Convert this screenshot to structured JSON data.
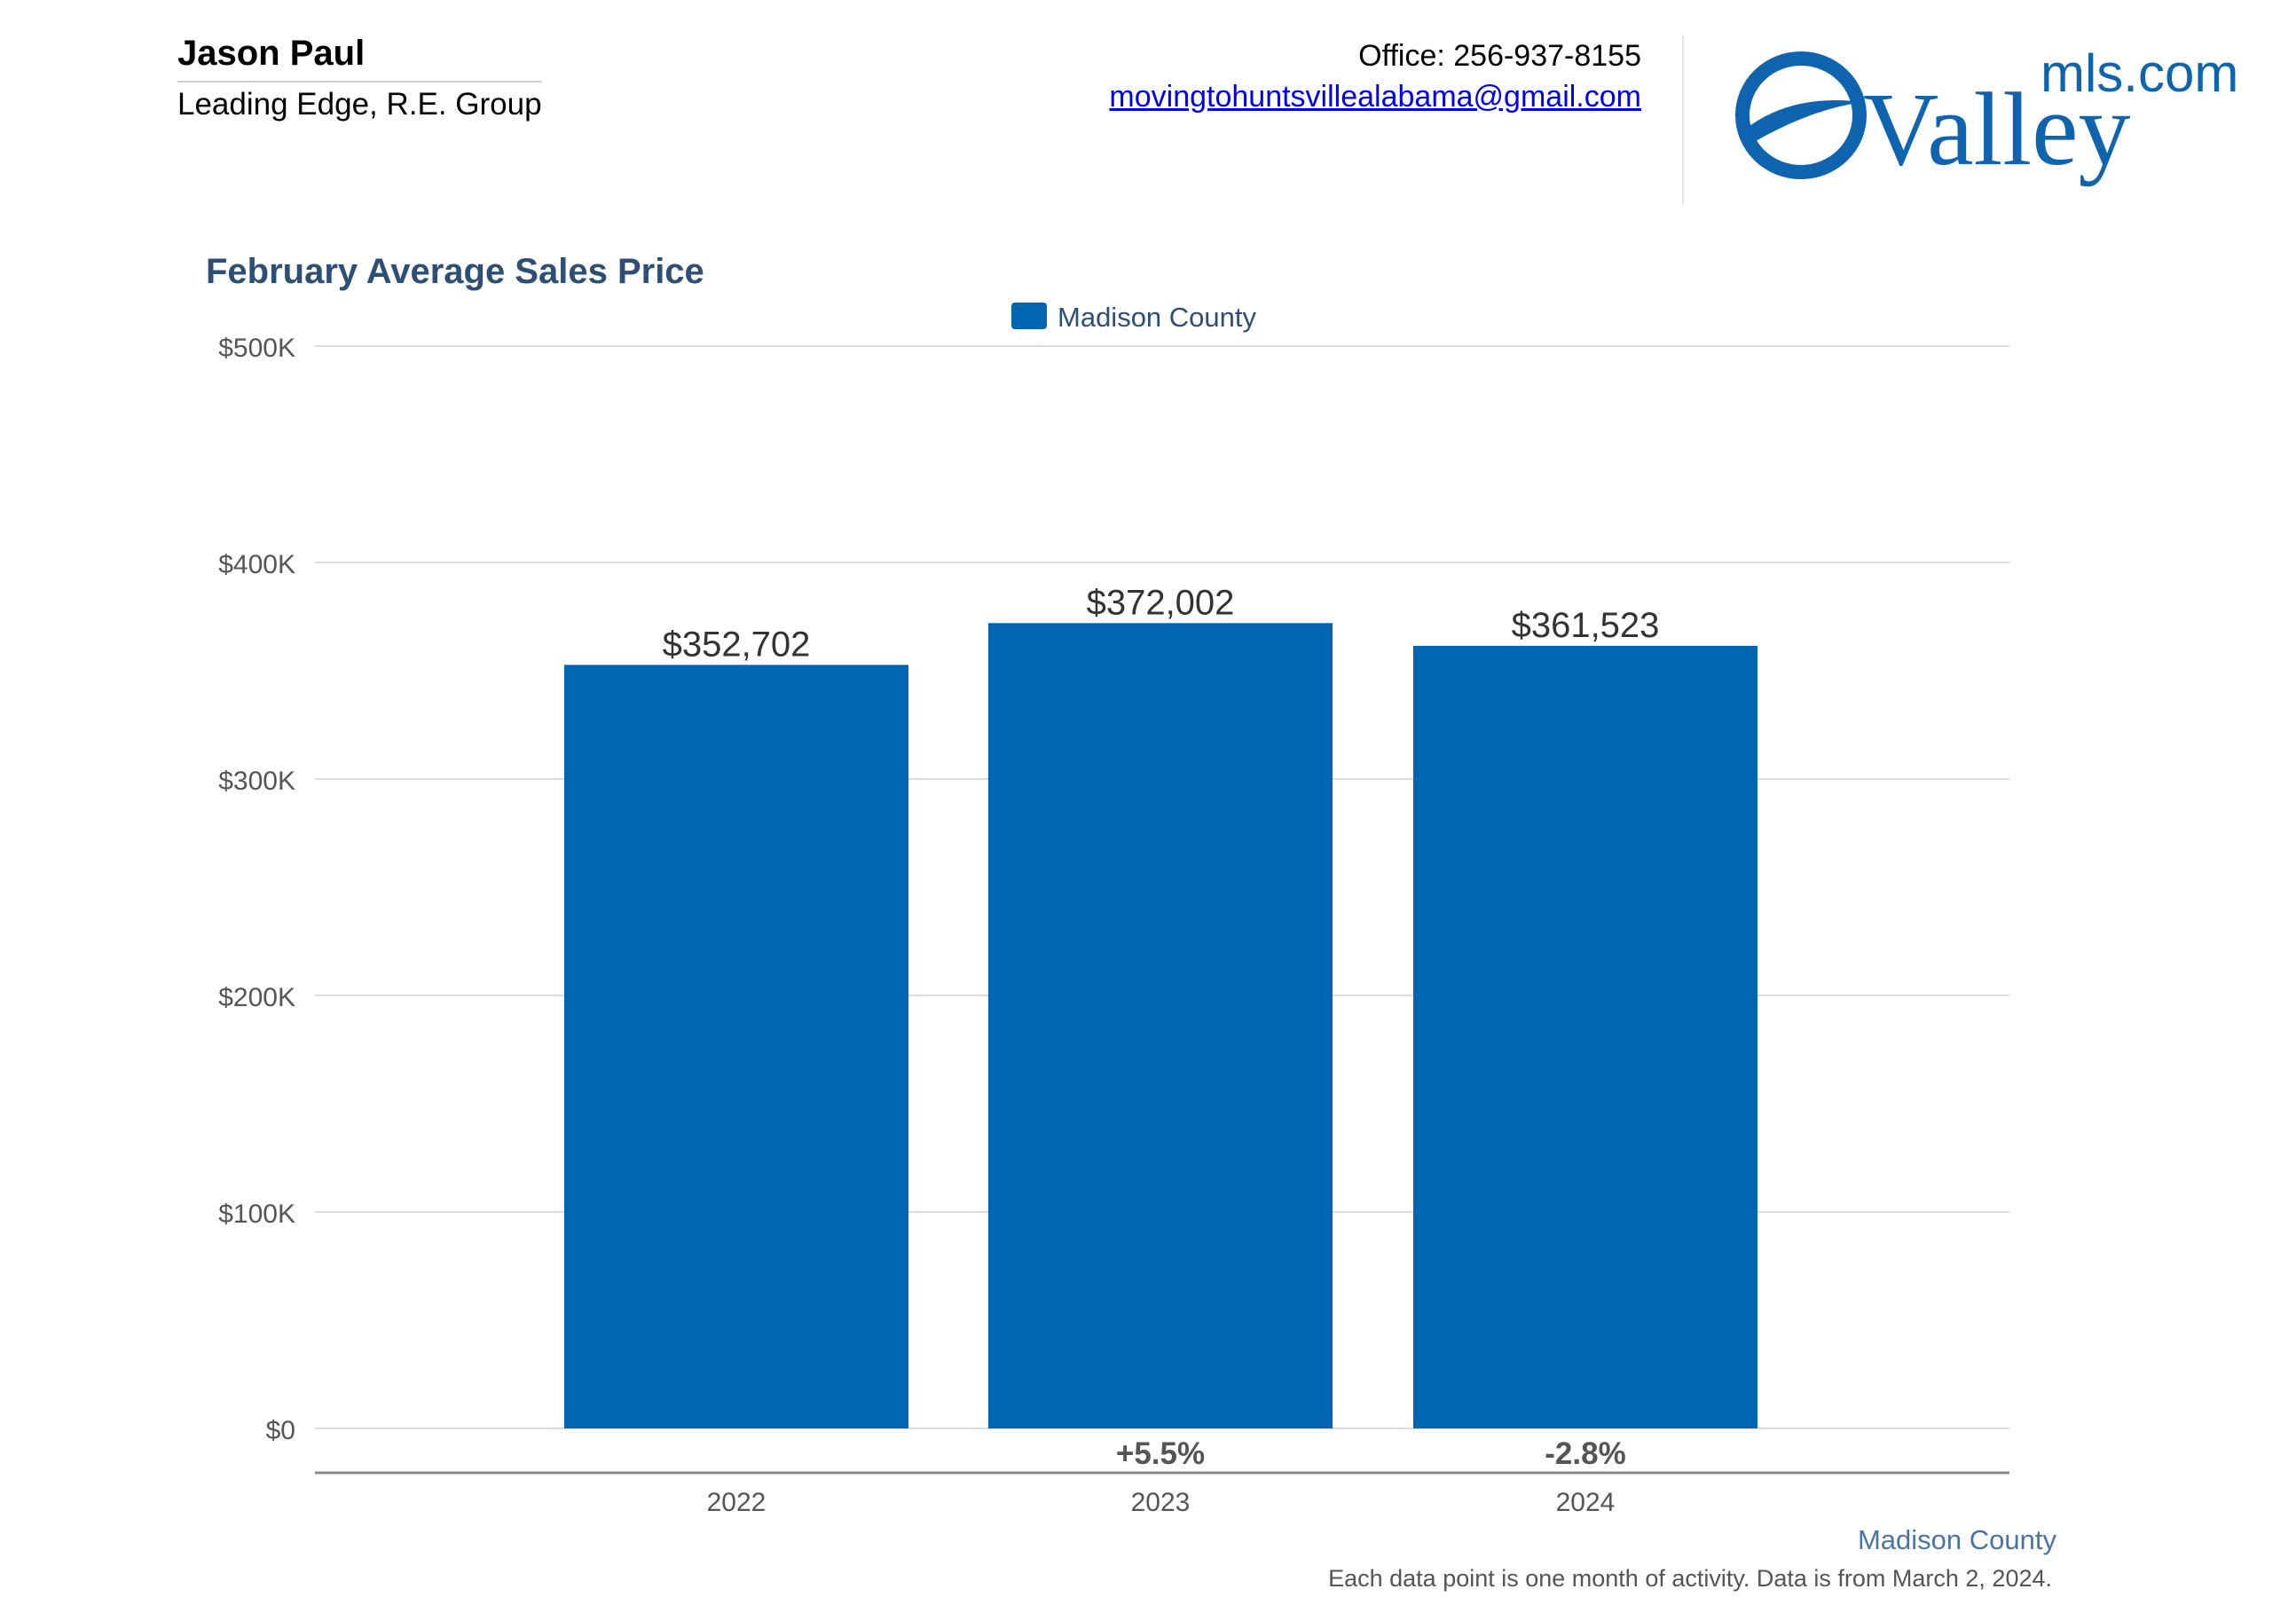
{
  "header": {
    "agent_name": "Jason Paul",
    "company": "Leading Edge, R.E. Group",
    "office": "Office: 256-937-8155",
    "email": "movingtohuntsvillealabama@gmail.com",
    "logo_prefix": "Valley",
    "logo_suffix": "mls.com"
  },
  "colors": {
    "bar": "#0066b2",
    "title": "#2d4f75",
    "logo": "#0f64b0"
  },
  "chart_data": {
    "type": "bar",
    "title": "February Average Sales Price",
    "categories": [
      "2022",
      "2023",
      "2024"
    ],
    "series": [
      {
        "name": "Madison County",
        "values": [
          352702,
          372002,
          361523
        ]
      }
    ],
    "value_labels": [
      "$352,702",
      "$372,002",
      "$361,523"
    ],
    "change_labels": [
      "",
      "+5.5%",
      "-2.8%"
    ],
    "ylim": [
      0,
      500000
    ],
    "yticks": [
      0,
      100000,
      200000,
      300000,
      400000,
      500000
    ],
    "ytick_labels": [
      "$0",
      "$100K",
      "$200K",
      "$300K",
      "$400K",
      "$500K"
    ],
    "grid": true,
    "legend": "top-center"
  },
  "footer": {
    "series_label": "Madison County",
    "note": "Each data point is one month of activity. Data is from March 2, 2024."
  }
}
